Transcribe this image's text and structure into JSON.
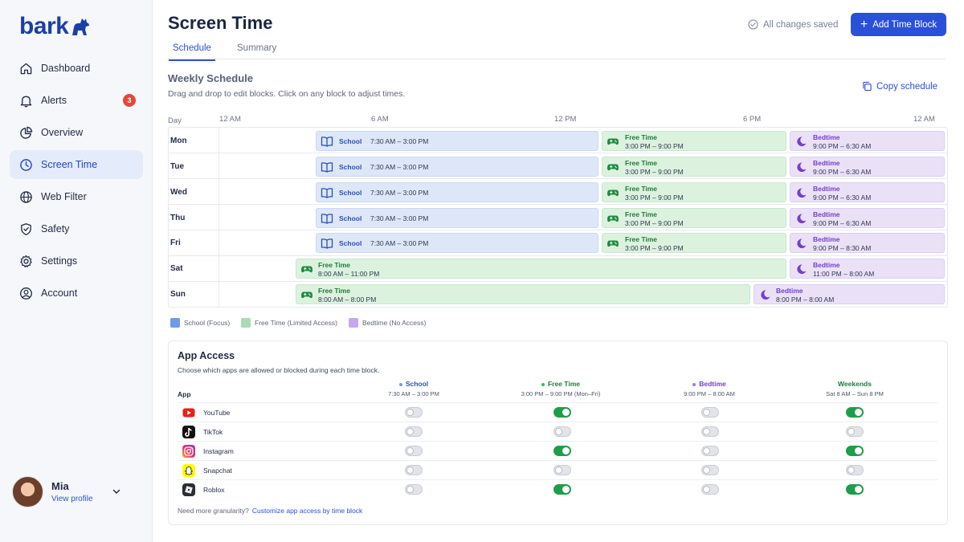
{
  "brand": {
    "name": "bark",
    "color": "#1b3fa8",
    "accent": "#2b50d8"
  },
  "sidebar": {
    "items": [
      {
        "label": "Dashboard",
        "icon": "home-icon"
      },
      {
        "label": "Alerts",
        "icon": "bell-icon",
        "badge": "3"
      },
      {
        "label": "Overview",
        "icon": "pie-chart-icon"
      },
      {
        "label": "Screen Time",
        "icon": "clock-icon",
        "active": true
      },
      {
        "label": "Web Filter",
        "icon": "globe-icon"
      },
      {
        "label": "Safety",
        "icon": "shield-check-icon"
      },
      {
        "label": "Settings",
        "icon": "gear-icon"
      },
      {
        "label": "Account",
        "icon": "user-circle-icon"
      }
    ],
    "profile": {
      "name": "Mia",
      "link": "View profile"
    }
  },
  "header": {
    "title": "Screen Time",
    "saved_status": "All changes saved",
    "add_button": "Add Time Block",
    "tabs": [
      {
        "label": "Schedule",
        "active": true
      },
      {
        "label": "Summary"
      }
    ]
  },
  "schedule": {
    "title": "Weekly Schedule",
    "subtitle": "Drag and drop to edit blocks. Click on any block to adjust times.",
    "copy_label": "Copy schedule",
    "day_header": "Day",
    "time_axis": [
      "12 AM",
      "6 AM",
      "12 PM",
      "6 PM",
      "12 AM"
    ],
    "days": [
      {
        "day": "Mon",
        "blocks": [
          {
            "type": "school",
            "name": "School",
            "time": "7:30 AM – 3:00 PM"
          },
          {
            "type": "free",
            "name": "Free Time",
            "time": "3:00 PM – 9:00 PM"
          },
          {
            "type": "bed",
            "name": "Bedtime",
            "time": "9:00 PM – 6:30 AM"
          }
        ]
      },
      {
        "day": "Tue",
        "blocks": [
          {
            "type": "school",
            "name": "School",
            "time": "7:30 AM – 3:00 PM"
          },
          {
            "type": "free",
            "name": "Free Time",
            "time": "3:00 PM – 9:00 PM"
          },
          {
            "type": "bed",
            "name": "Bedtime",
            "time": "9:00 PM – 6:30 AM"
          }
        ]
      },
      {
        "day": "Wed",
        "blocks": [
          {
            "type": "school",
            "name": "School",
            "time": "7:30 AM – 3:00 PM"
          },
          {
            "type": "free",
            "name": "Free Time",
            "time": "3:00 PM – 9:00 PM"
          },
          {
            "type": "bed",
            "name": "Bedtime",
            "time": "9:00 PM – 6:30 AM"
          }
        ]
      },
      {
        "day": "Thu",
        "blocks": [
          {
            "type": "school",
            "name": "School",
            "time": "7:30 AM – 3:00 PM"
          },
          {
            "type": "free",
            "name": "Free Time",
            "time": "3:00 PM – 9:00 PM"
          },
          {
            "type": "bed",
            "name": "Bedtime",
            "time": "9:00 PM – 6:30 AM"
          }
        ]
      },
      {
        "day": "Fri",
        "blocks": [
          {
            "type": "school",
            "name": "School",
            "time": "7:30 AM – 3:00 PM"
          },
          {
            "type": "free",
            "name": "Free Time",
            "time": "3:00 PM – 9:00 PM"
          },
          {
            "type": "bed",
            "name": "Bedtime",
            "time": "9:00 PM – 8:30 AM"
          }
        ]
      },
      {
        "day": "Sat",
        "blocks": [
          {
            "type": "free",
            "name": "Free Time",
            "time": "8:00 AM – 11:00 PM"
          },
          {
            "type": "bed",
            "name": "Bedtime",
            "time": "11:00 PM – 8:00 AM"
          }
        ]
      },
      {
        "day": "Sun",
        "blocks": [
          {
            "type": "free",
            "name": "Free Time",
            "time": "8:00 AM – 8:00 PM"
          },
          {
            "type": "bed",
            "name": "Bedtime",
            "time": "8:00 PM – 8:00 AM"
          }
        ]
      }
    ],
    "legend": [
      {
        "label": "School (Focus)",
        "color": "#6f9ae8"
      },
      {
        "label": "Free Time (Limited Access)",
        "color": "#a9dcb2"
      },
      {
        "label": "Bedtime (No Access)",
        "color": "#c7a8ef"
      }
    ]
  },
  "app_access": {
    "title": "App Access",
    "subtitle": "Choose which apps are allowed or blocked during each time block.",
    "app_header": "App",
    "columns": [
      {
        "name": "School",
        "time": "7:30 AM – 3:00 PM",
        "color": "#2b50b8",
        "dot": "#6f9ae8"
      },
      {
        "name": "Free Time",
        "time": "3:00 PM – 9:00 PM (Mon–Fri)",
        "color": "#227a3a",
        "dot": "#3fb35e"
      },
      {
        "name": "Bedtime",
        "time": "9:00 PM – 8:00 AM",
        "color": "#7440c6",
        "dot": "#9b7ad8"
      },
      {
        "name": "Weekends",
        "time": "Sat 8 AM – Sun 8 PM",
        "color": "#227a3a",
        "dot": ""
      }
    ],
    "apps": [
      {
        "name": "YouTube",
        "icon": "youtube-icon",
        "access": [
          false,
          true,
          false,
          true
        ]
      },
      {
        "name": "TikTok",
        "icon": "tiktok-icon",
        "access": [
          false,
          false,
          false,
          false
        ]
      },
      {
        "name": "Instagram",
        "icon": "instagram-icon",
        "access": [
          false,
          true,
          false,
          true
        ]
      },
      {
        "name": "Snapchat",
        "icon": "snapchat-icon",
        "access": [
          false,
          false,
          false,
          false
        ]
      },
      {
        "name": "Roblox",
        "icon": "roblox-icon",
        "access": [
          false,
          true,
          false,
          true
        ]
      }
    ],
    "granularity_text": "Need more granularity?",
    "granularity_link": "Customize app access by time block"
  }
}
